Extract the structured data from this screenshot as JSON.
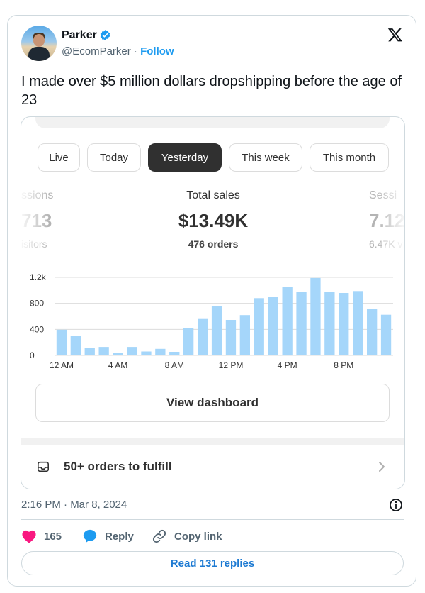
{
  "author": {
    "name": "Parker",
    "handle": "@EcomParker",
    "separator": "·",
    "follow_label": "Follow"
  },
  "tweet": {
    "text": "I made over $5 million dollars dropshipping before the age of 23",
    "timestamp": "2:16 PM · Mar 8, 2024"
  },
  "dashboard": {
    "tabs": [
      {
        "label": "Live",
        "active": false
      },
      {
        "label": "Today",
        "active": false
      },
      {
        "label": "Yesterday",
        "active": true
      },
      {
        "label": "This week",
        "active": false
      },
      {
        "label": "This month",
        "active": false
      }
    ],
    "left_stat": {
      "label": "ssions",
      "value": "713",
      "sub": "isitors"
    },
    "center_stat": {
      "label": "Total sales",
      "value": "$13.49K",
      "sub": "476 orders"
    },
    "right_stat": {
      "label": "Sessi",
      "value": "7.12",
      "sub": "6.47K v"
    },
    "view_button": "View dashboard",
    "fulfill_label": "50+ orders to fulfill"
  },
  "chart_data": {
    "type": "bar",
    "categories": [
      "12 AM",
      "1 AM",
      "2 AM",
      "3 AM",
      "4 AM",
      "5 AM",
      "6 AM",
      "7 AM",
      "8 AM",
      "9 AM",
      "10 AM",
      "11 AM",
      "12 PM",
      "1 PM",
      "2 PM",
      "3 PM",
      "4 PM",
      "5 PM",
      "6 PM",
      "7 PM",
      "8 PM",
      "9 PM",
      "10 PM",
      "11 PM"
    ],
    "values": [
      395,
      300,
      110,
      130,
      35,
      130,
      60,
      100,
      55,
      415,
      560,
      760,
      545,
      620,
      880,
      905,
      1050,
      975,
      1190,
      975,
      960,
      990,
      720,
      625
    ],
    "x_tick_labels": [
      "12 AM",
      "4 AM",
      "8 AM",
      "12 PM",
      "4 PM",
      "8 PM"
    ],
    "y_tick_labels": [
      "0",
      "400",
      "800",
      "1.2k"
    ],
    "y_ticks": [
      0,
      400,
      800,
      1200
    ],
    "ylim": [
      0,
      1200
    ],
    "grid": true,
    "bar_color": "#a5d6fa",
    "grid_color": "#dcdcdc",
    "axis_text_color": "#333333"
  },
  "engagement": {
    "likes": "165",
    "reply_label": "Reply",
    "copy_label": "Copy link",
    "read_replies": "Read 131 replies"
  },
  "colors": {
    "accent": "#1d9bf0",
    "like": "#f91880",
    "active_tab": "#303030"
  },
  "icons": {
    "verified": "verified-badge-icon",
    "logo": "x-logo-icon",
    "heart": "heart-icon",
    "reply": "speech-bubble-icon",
    "link": "link-icon",
    "info": "info-icon",
    "inbox": "inbox-icon",
    "chevron": "chevron-right-icon"
  }
}
